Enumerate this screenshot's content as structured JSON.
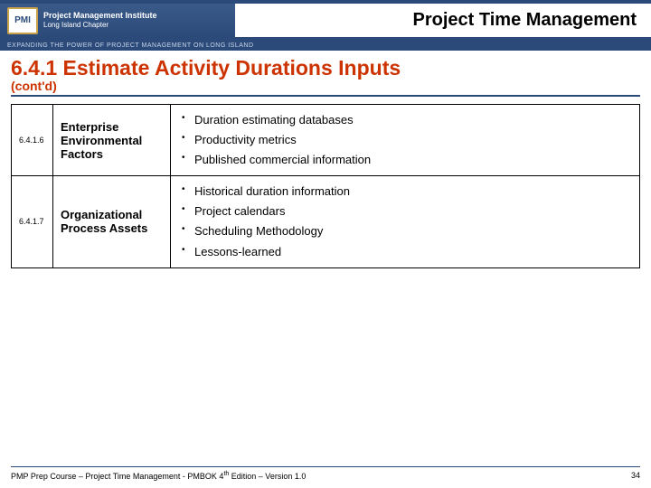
{
  "header": {
    "logo_abbrev": "PMI",
    "logo_line1": "Project Management Institute",
    "logo_line2": "Long Island Chapter",
    "tagline": "EXPANDING THE POWER OF PROJECT MANAGEMENT ON LONG ISLAND",
    "title": "Project Time Management"
  },
  "section": {
    "number_title": "6.4.1 Estimate Activity Durations Inputs",
    "contd": "(cont'd)"
  },
  "table": {
    "rows": [
      {
        "num": "6.4.1.6",
        "name": "Enterprise Environmental Factors",
        "items": [
          "Duration estimating databases",
          "Productivity metrics",
          "Published commercial information"
        ]
      },
      {
        "num": "6.4.1.7",
        "name": "Organizational Process Assets",
        "items": [
          "Historical duration information",
          "Project calendars",
          "Scheduling Methodology",
          "Lessons-learned"
        ]
      }
    ]
  },
  "footer": {
    "left_pre": "PMP Prep Course – Project Time Management - PMBOK 4",
    "left_sup": "th",
    "left_post": " Edition – Version 1.0",
    "page": "34"
  },
  "colors": {
    "brand_blue": "#2b4a7a",
    "accent_red": "#cc3300",
    "gold": "#c9a24a"
  }
}
